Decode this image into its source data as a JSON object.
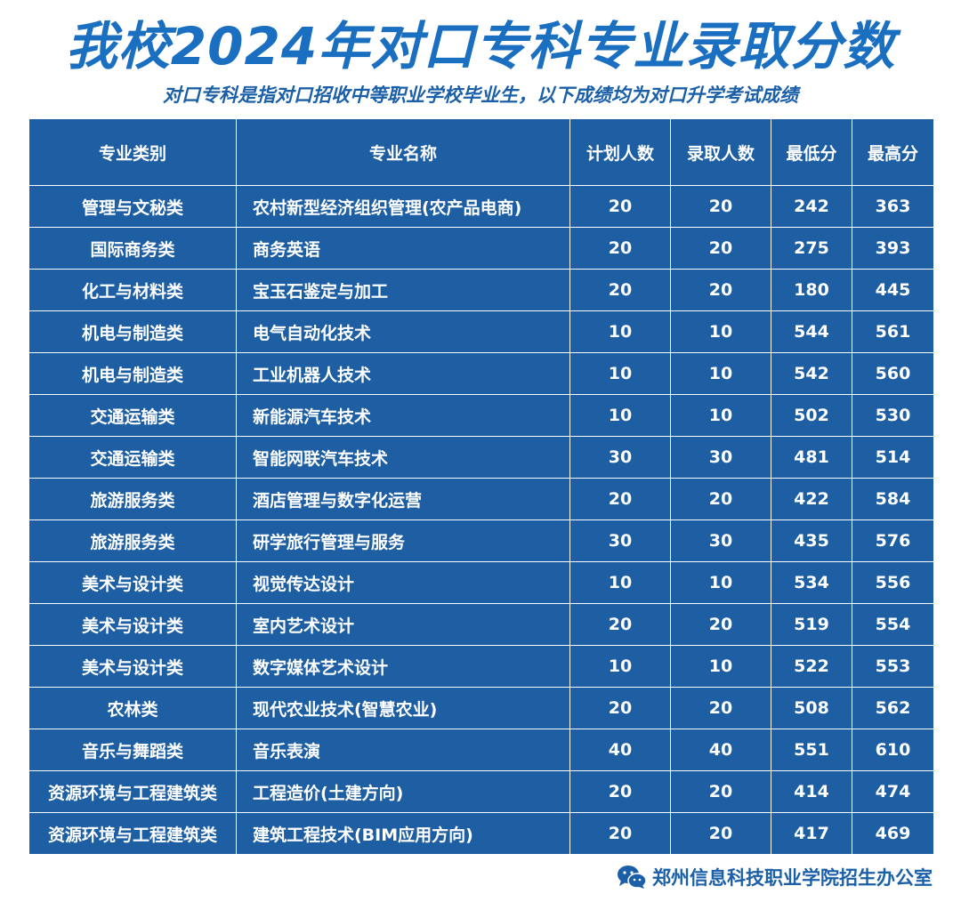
{
  "title": "我校2024年对口专科专业录取分数",
  "subtitle": "对口专科是指对口招收中等职业学校毕业生，以下成绩均为对口升学考试成绩",
  "table": {
    "headers": [
      "专业类别",
      "专业名称",
      "计划人数",
      "录取人数",
      "最低分",
      "最高分"
    ],
    "rows": [
      [
        "管理与文秘类",
        "农村新型经济组织管理(农产品电商)",
        "20",
        "20",
        "242",
        "363"
      ],
      [
        "国际商务类",
        "商务英语",
        "20",
        "20",
        "275",
        "393"
      ],
      [
        "化工与材料类",
        "宝玉石鉴定与加工",
        "20",
        "20",
        "180",
        "445"
      ],
      [
        "机电与制造类",
        "电气自动化技术",
        "10",
        "10",
        "544",
        "561"
      ],
      [
        "机电与制造类",
        "工业机器人技术",
        "10",
        "10",
        "542",
        "560"
      ],
      [
        "交通运输类",
        "新能源汽车技术",
        "10",
        "10",
        "502",
        "530"
      ],
      [
        "交通运输类",
        "智能网联汽车技术",
        "30",
        "30",
        "481",
        "514"
      ],
      [
        "旅游服务类",
        "酒店管理与数字化运营",
        "20",
        "20",
        "422",
        "584"
      ],
      [
        "旅游服务类",
        "研学旅行管理与服务",
        "30",
        "30",
        "435",
        "576"
      ],
      [
        "美术与设计类",
        "视觉传达设计",
        "10",
        "10",
        "534",
        "556"
      ],
      [
        "美术与设计类",
        "室内艺术设计",
        "20",
        "20",
        "519",
        "554"
      ],
      [
        "美术与设计类",
        "数字媒体艺术设计",
        "10",
        "10",
        "522",
        "553"
      ],
      [
        "农林类",
        "现代农业技术(智慧农业)",
        "20",
        "20",
        "508",
        "562"
      ],
      [
        "音乐与舞蹈类",
        "音乐表演",
        "40",
        "40",
        "551",
        "610"
      ],
      [
        "资源环境与工程建筑类",
        "工程造价(土建方向)",
        "20",
        "20",
        "414",
        "474"
      ],
      [
        "资源环境与工程建筑类",
        "建筑工程技术(BIM应用方向)",
        "20",
        "20",
        "417",
        "469"
      ]
    ]
  },
  "footer": {
    "icon": "wechat-icon",
    "text": "郑州信息科技职业学院招生办公室"
  },
  "colors": {
    "title": "#1a6fc0",
    "table_bg": "#1e5fa3",
    "cell_text": "#ffffff"
  }
}
